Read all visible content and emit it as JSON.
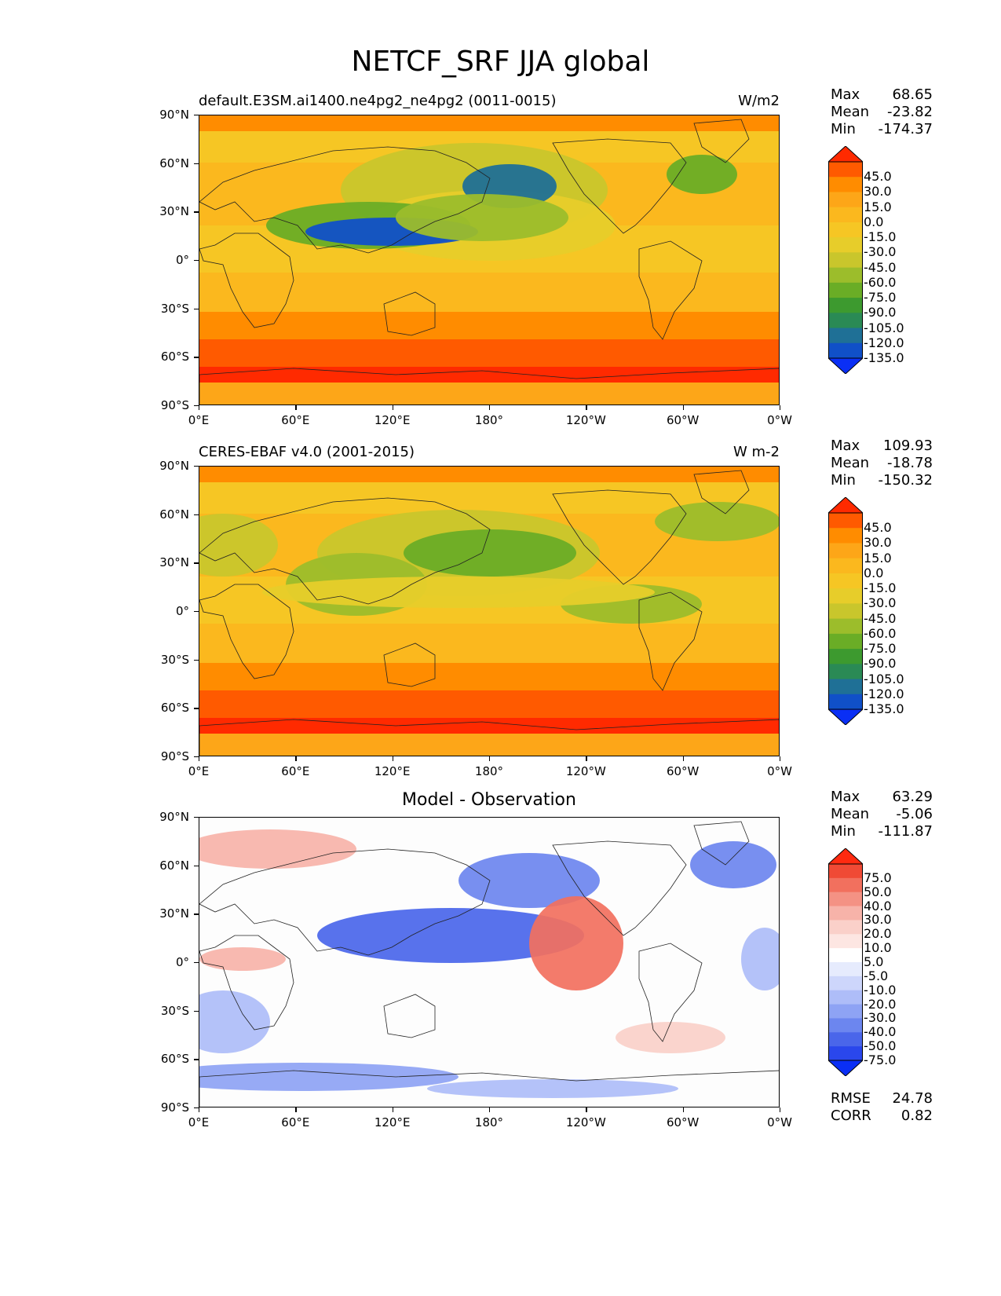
{
  "title": "NETCF_SRF JJA global",
  "x_ticks": [
    "0°E",
    "60°E",
    "120°E",
    "180°",
    "120°W",
    "60°W",
    "0°W"
  ],
  "y_ticks": [
    "90°N",
    "60°N",
    "30°N",
    "0°",
    "30°S",
    "60°S",
    "90°S"
  ],
  "panels": [
    {
      "left_title": "default.E3SM.ai1400.ne4pg2_ne4pg2 (0011-0015)",
      "center_title": "",
      "units": "W/m2",
      "stats": [
        {
          "k": "Max",
          "v": "68.65"
        },
        {
          "k": "Mean",
          "v": "-23.82"
        },
        {
          "k": "Min",
          "v": "-174.37"
        }
      ],
      "extra_stats": [],
      "colorbar": {
        "labels": [
          "45.0",
          "30.0",
          "15.0",
          "0.0",
          "-15.0",
          "-30.0",
          "-45.0",
          "-60.0",
          "-75.0",
          "-90.0",
          "-105.0",
          "-120.0",
          "-135.0"
        ],
        "colors": [
          "#ff2a00",
          "#ff5a00",
          "#ff8c00",
          "#fda618",
          "#fbb81e",
          "#f6c624",
          "#e7cd2a",
          "#c9c62c",
          "#9cbd2b",
          "#6aad26",
          "#3d9a2f",
          "#2a8a55",
          "#1f7096",
          "#1050c8",
          "#0a2ff5"
        ]
      }
    },
    {
      "left_title": "CERES-EBAF v4.0 (2001-2015)",
      "center_title": "",
      "units": "W m-2",
      "stats": [
        {
          "k": "Max",
          "v": "109.93"
        },
        {
          "k": "Mean",
          "v": "-18.78"
        },
        {
          "k": "Min",
          "v": "-150.32"
        }
      ],
      "extra_stats": [],
      "colorbar": {
        "labels": [
          "45.0",
          "30.0",
          "15.0",
          "0.0",
          "-15.0",
          "-30.0",
          "-45.0",
          "-60.0",
          "-75.0",
          "-90.0",
          "-105.0",
          "-120.0",
          "-135.0"
        ],
        "colors": [
          "#ff2a00",
          "#ff5a00",
          "#ff8c00",
          "#fda618",
          "#fbb81e",
          "#f6c624",
          "#e7cd2a",
          "#c9c62c",
          "#9cbd2b",
          "#6aad26",
          "#3d9a2f",
          "#2a8a55",
          "#1f7096",
          "#1050c8",
          "#0a2ff5"
        ]
      }
    },
    {
      "left_title": "",
      "center_title": "Model - Observation",
      "units": "",
      "stats": [
        {
          "k": "Max",
          "v": "63.29"
        },
        {
          "k": "Mean",
          "v": "-5.06"
        },
        {
          "k": "Min",
          "v": "-111.87"
        }
      ],
      "extra_stats": [
        {
          "k": "RMSE",
          "v": "24.78"
        },
        {
          "k": "CORR",
          "v": "0.82"
        }
      ],
      "colorbar": {
        "labels": [
          "75.0",
          "50.0",
          "40.0",
          "30.0",
          "20.0",
          "10.0",
          "5.0",
          "-5.0",
          "-10.0",
          "-20.0",
          "-30.0",
          "-40.0",
          "-50.0",
          "-75.0"
        ],
        "colors": [
          "#ff2a10",
          "#f04a35",
          "#f2705e",
          "#f49284",
          "#f7b3a9",
          "#fad0c9",
          "#fde6e2",
          "#ffffff",
          "#e6ebfd",
          "#cdd6fb",
          "#aebdf8",
          "#8ea3f4",
          "#6c86ef",
          "#4a66ea",
          "#2a47ec",
          "#0a2ff5"
        ]
      }
    }
  ]
}
